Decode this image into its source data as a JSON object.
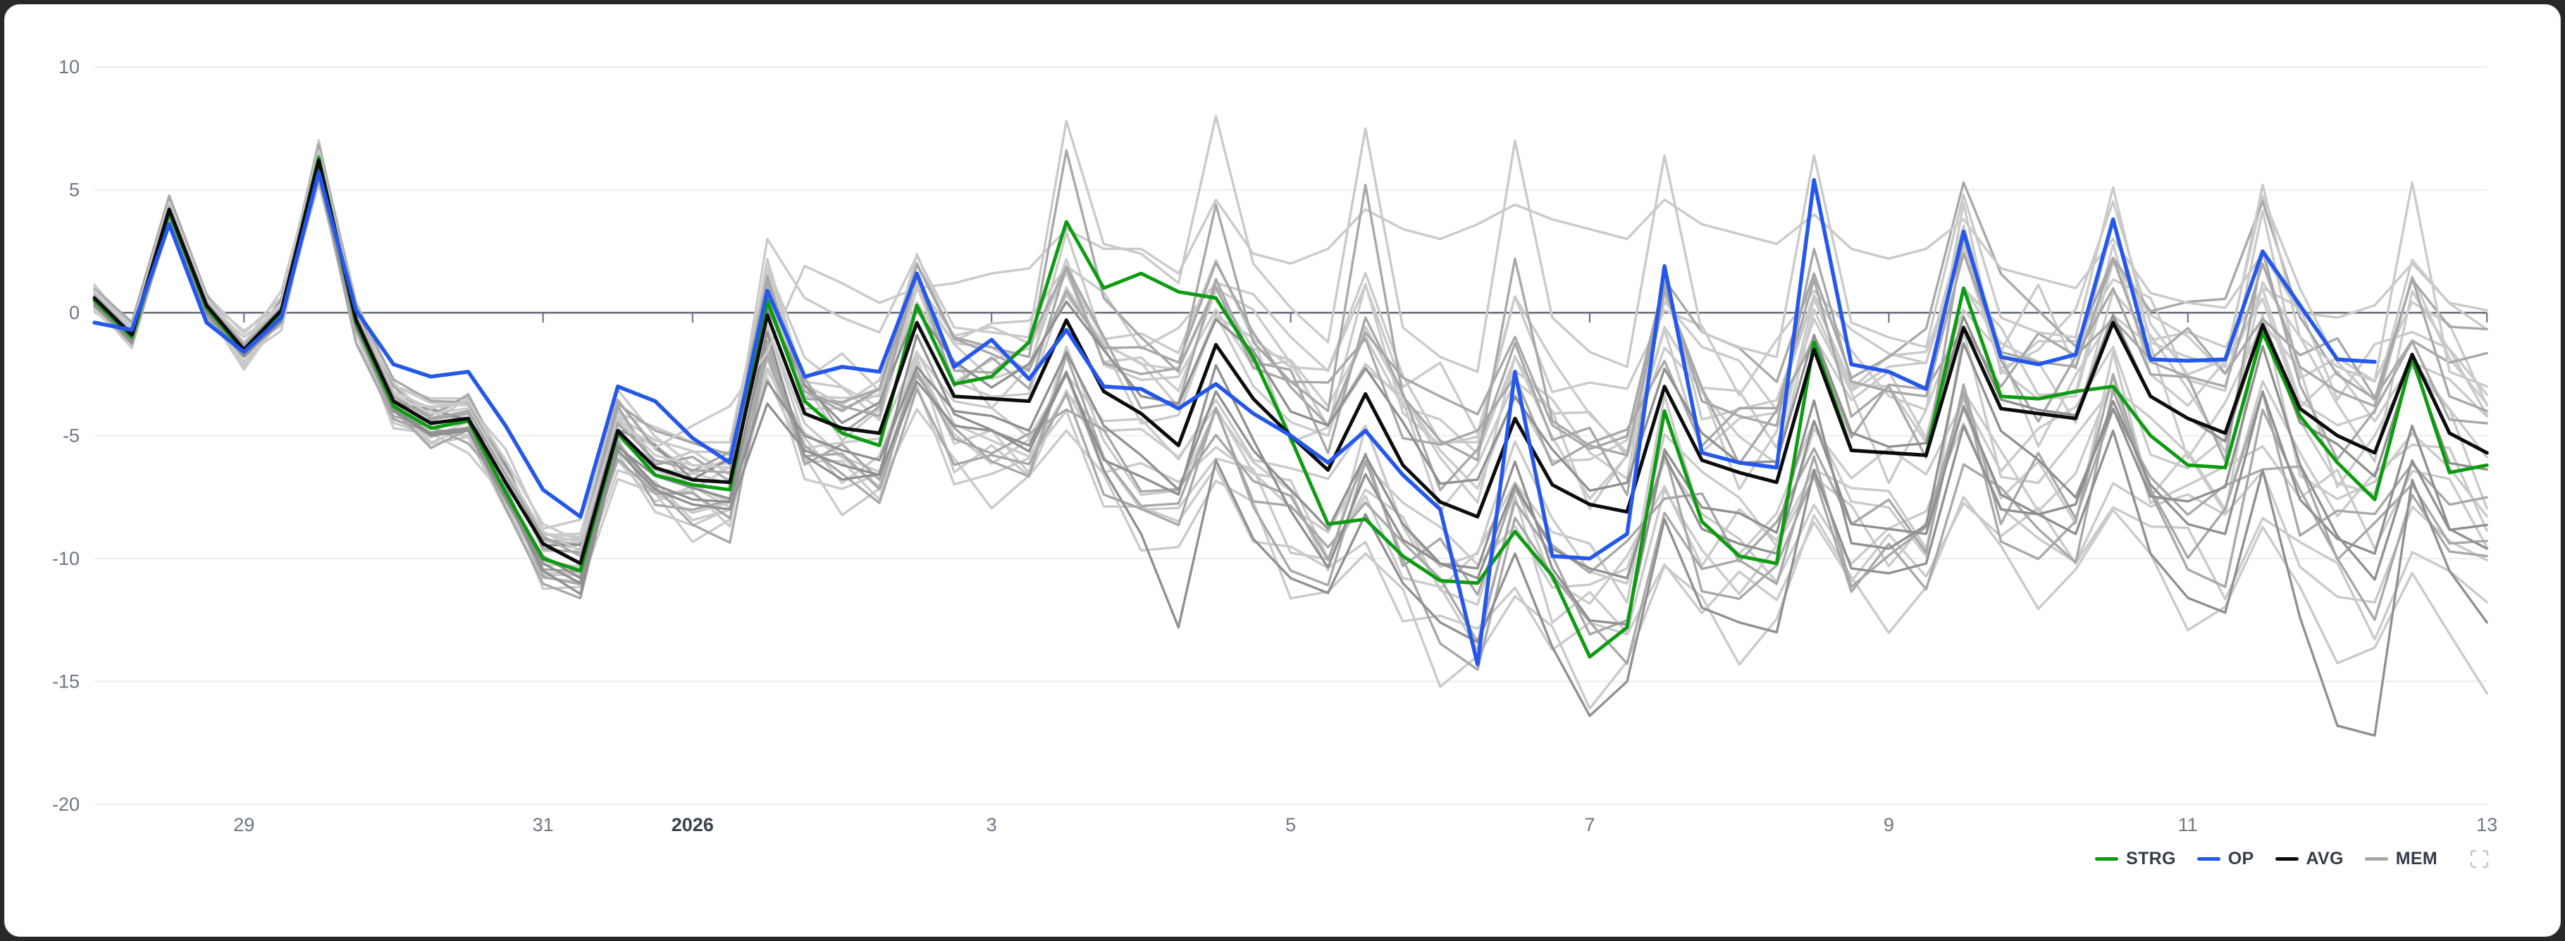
{
  "page": {
    "background": "#282828",
    "card_background": "#ffffff",
    "card_border": "#e4e6ea"
  },
  "legend": {
    "items": [
      {
        "id": "strg",
        "label": "STRG",
        "color": "#0d9c11"
      },
      {
        "id": "op",
        "label": "OP",
        "color": "#2457ec"
      },
      {
        "id": "avg",
        "label": "AVG",
        "color": "#0b0b0b"
      },
      {
        "id": "mem",
        "label": "MEM",
        "color": "#a8a8a8"
      }
    ],
    "fullscreen_icon_color": "#c6c6c6"
  },
  "chart_data": {
    "type": "line",
    "title": "",
    "xlabel": "",
    "ylabel": "",
    "grid": "horizontal",
    "legend_position": "bottom-right",
    "x_axis": {
      "unit": "days",
      "step_days": 0.25,
      "tick_labels": [
        {
          "label": "29",
          "t": 1,
          "bold": false
        },
        {
          "label": "31",
          "t": 3,
          "bold": false
        },
        {
          "label": "2026",
          "t": 4,
          "bold": true
        },
        {
          "label": "3",
          "t": 6,
          "bold": false
        },
        {
          "label": "5",
          "t": 8,
          "bold": false
        },
        {
          "label": "7",
          "t": 10,
          "bold": false
        },
        {
          "label": "9",
          "t": 12,
          "bold": false
        },
        {
          "label": "11",
          "t": 14,
          "bold": false
        },
        {
          "label": "13",
          "t": 16,
          "bold": false
        }
      ]
    },
    "y_axis": {
      "ticks": [
        10,
        5,
        0,
        -5,
        -10,
        -15,
        -20
      ],
      "range": [
        -20,
        10
      ]
    },
    "series": [
      {
        "name": "STRG",
        "color": "#0d9c11",
        "width": 5,
        "start_t": 0,
        "values": [
          0.5,
          -1.0,
          4.1,
          0.2,
          -1.6,
          0.0,
          6.3,
          -0.4,
          -3.8,
          -4.7,
          -4.4,
          -7.3,
          -10.0,
          -10.5,
          -4.9,
          -6.6,
          -7.0,
          -7.2,
          0.5,
          -3.6,
          -4.9,
          -5.4,
          0.3,
          -2.9,
          -2.6,
          -1.2,
          3.7,
          1.0,
          1.6,
          0.85,
          0.6,
          -1.8,
          -5.1,
          -8.6,
          -8.4,
          -9.9,
          -10.9,
          -11.0,
          -8.9,
          -10.7,
          -14.0,
          -12.8,
          -4.0,
          -8.5,
          -9.9,
          -10.2,
          -1.2,
          -5.6,
          -5.7,
          -5.8,
          1.0,
          -3.4,
          -3.5,
          -3.2,
          -3.0,
          -5.0,
          -6.2,
          -6.3,
          -0.8,
          -4.2,
          -6.1,
          -7.6,
          -1.8,
          -6.5,
          -6.2
        ]
      },
      {
        "name": "OP",
        "color": "#2457ec",
        "width": 5.5,
        "start_t": 0,
        "values": [
          -0.4,
          -0.7,
          3.6,
          -0.4,
          -1.6,
          -0.2,
          5.7,
          0.1,
          -2.1,
          -2.6,
          -2.4,
          -4.6,
          -7.2,
          -8.3,
          -3.0,
          -3.6,
          -5.1,
          -6.1,
          0.9,
          -2.6,
          -2.2,
          -2.4,
          1.6,
          -2.2,
          -1.1,
          -2.7,
          -0.7,
          -3.0,
          -3.1,
          -3.9,
          -2.9,
          -4.1,
          -5.0,
          -6.1,
          -4.8,
          -6.6,
          -8.0,
          -14.3,
          -2.4,
          -9.9,
          -10.0,
          -9.0,
          1.9,
          -5.7,
          -6.1,
          -6.3,
          5.4,
          -2.1,
          -2.4,
          -3.1,
          3.3,
          -1.8,
          -2.1,
          -1.7,
          3.8,
          -1.9,
          -1.95,
          -1.9,
          2.5,
          0.3,
          -1.9,
          -2.0
        ]
      },
      {
        "name": "AVG",
        "color": "#0b0b0b",
        "width": 5,
        "start_t": 0,
        "values": [
          0.6,
          -0.9,
          4.2,
          0.3,
          -1.5,
          0.1,
          6.2,
          -0.3,
          -3.6,
          -4.5,
          -4.3,
          -6.9,
          -9.4,
          -10.2,
          -4.8,
          -6.3,
          -6.8,
          -6.9,
          -0.1,
          -4.1,
          -4.7,
          -4.9,
          -0.4,
          -3.4,
          -3.5,
          -3.6,
          -0.3,
          -3.2,
          -4.1,
          -5.4,
          -1.3,
          -3.5,
          -5.0,
          -6.4,
          -3.3,
          -6.2,
          -7.7,
          -8.3,
          -4.3,
          -7.0,
          -7.8,
          -8.1,
          -3.0,
          -6.0,
          -6.5,
          -6.9,
          -1.5,
          -5.6,
          -5.7,
          -5.8,
          -0.6,
          -3.9,
          -4.1,
          -4.3,
          -0.4,
          -3.4,
          -4.3,
          -4.9,
          -0.5,
          -3.9,
          -5.0,
          -5.7,
          -1.7,
          -4.9,
          -5.7
        ]
      }
    ],
    "members": {
      "name": "MEM",
      "line_width": 3.4,
      "shade_colors": {
        "l": "#cacaca",
        "m": "#a8a8a8",
        "d": "#909090"
      },
      "wobble": {
        "base": 0.18,
        "growth": 0.11,
        "max": 1.55
      },
      "amp_ramp": {
        "start_t": 2,
        "span": 5
      },
      "bias_key_step_days": 2,
      "generated": [
        {
          "shade": "l",
          "amp": 1.1,
          "bias": [
            0.3,
            0.4,
            0.6,
            1.0,
            1.5,
            2.0,
            2.5,
            2.0,
            1.5
          ]
        },
        {
          "shade": "l",
          "amp": 0.9,
          "bias": [
            -0.3,
            -0.5,
            -0.8,
            -1.0,
            -1.5,
            -2.0,
            -1.5,
            -1.0,
            -0.5
          ]
        },
        {
          "shade": "l",
          "amp": 1.3,
          "bias": [
            0.2,
            0.3,
            0.5,
            1.5,
            2.5,
            3.0,
            2.0,
            1.0,
            2.0
          ]
        },
        {
          "shade": "l",
          "amp": 0.8,
          "bias": [
            -0.2,
            -0.4,
            -1.0,
            -2.0,
            -3.0,
            -3.5,
            -2.5,
            -3.0,
            -3.5
          ]
        },
        {
          "shade": "l",
          "amp": 1.2,
          "bias": [
            0.4,
            0.5,
            1.0,
            2.0,
            3.0,
            2.5,
            3.0,
            2.5,
            3.0
          ]
        },
        {
          "shade": "l",
          "amp": 1.0,
          "bias": [
            -0.4,
            -0.6,
            -1.2,
            -2.5,
            -4.0,
            -4.5,
            -3.5,
            -2.5,
            -2.0
          ]
        },
        {
          "shade": "l",
          "amp": 1.4,
          "bias": [
            0.1,
            0.2,
            0.4,
            0.8,
            1.2,
            1.8,
            1.0,
            0.5,
            -0.5
          ]
        },
        {
          "shade": "l",
          "amp": 0.7,
          "bias": [
            -0.1,
            -0.3,
            -0.6,
            -1.5,
            -2.2,
            -3.0,
            -4.0,
            -5.0,
            -6.0
          ]
        },
        {
          "shade": "l",
          "amp": 1.1,
          "bias": [
            0.25,
            0.5,
            1.2,
            2.2,
            3.5,
            4.0,
            3.0,
            3.5,
            4.0
          ]
        },
        {
          "shade": "l",
          "amp": 0.9,
          "bias": [
            -0.25,
            -0.5,
            -1.5,
            -3.0,
            -5.0,
            -6.0,
            -5.0,
            -6.0,
            -7.0
          ]
        },
        {
          "shade": "l",
          "amp": 1.0,
          "bias": [
            0.15,
            0.3,
            0.8,
            1.5,
            2.0,
            1.5,
            2.0,
            1.5,
            1.0
          ]
        },
        {
          "shade": "l",
          "amp": 1.2,
          "bias": [
            -0.15,
            -0.35,
            -0.9,
            -1.8,
            -2.8,
            -2.0,
            -2.5,
            -1.5,
            -2.5
          ]
        },
        {
          "shade": "l",
          "amp": 0.85,
          "bias": [
            0.35,
            0.6,
            1.5,
            2.8,
            4.0,
            4.5,
            4.0,
            3.0,
            2.5
          ]
        },
        {
          "shade": "l",
          "amp": 1.15,
          "bias": [
            -0.35,
            -0.7,
            -1.8,
            -3.5,
            -5.5,
            -7.0,
            -6.0,
            -7.5,
            -9.0
          ]
        },
        {
          "shade": "m",
          "amp": 1.0,
          "bias": [
            0.3,
            0.5,
            1.0,
            1.8,
            2.8,
            3.5,
            4.5,
            4.0,
            3.5
          ]
        },
        {
          "shade": "m",
          "amp": 1.25,
          "bias": [
            -0.3,
            -0.6,
            -1.4,
            -2.8,
            -4.2,
            -5.0,
            -4.0,
            -4.5,
            -5.5
          ]
        },
        {
          "shade": "m",
          "amp": 0.9,
          "bias": [
            0.2,
            0.4,
            0.9,
            1.6,
            2.4,
            2.0,
            1.5,
            2.0,
            2.5
          ]
        },
        {
          "shade": "m",
          "amp": 1.1,
          "bias": [
            -0.2,
            -0.5,
            -1.1,
            -2.2,
            -3.4,
            -4.0,
            -5.0,
            -4.0,
            -3.0
          ]
        },
        {
          "shade": "m",
          "amp": 1.35,
          "bias": [
            0.1,
            0.25,
            0.6,
            1.2,
            2.0,
            2.5,
            2.0,
            1.0,
            0.5
          ]
        },
        {
          "shade": "m",
          "amp": 0.8,
          "bias": [
            -0.1,
            -0.4,
            -1.0,
            -2.0,
            -3.2,
            -2.5,
            -3.0,
            -3.5,
            -4.5
          ]
        },
        {
          "shade": "d",
          "amp": 1.05,
          "bias": [
            0.05,
            0.2,
            0.5,
            1.0,
            1.5,
            1.0,
            0.5,
            0.0,
            -1.0
          ]
        },
        {
          "shade": "d",
          "amp": 1.2,
          "bias": [
            -0.05,
            -0.3,
            -0.8,
            -1.6,
            -2.6,
            -3.2,
            -2.2,
            -2.8,
            -3.8
          ]
        }
      ],
      "explicit": [
        {
          "shade": "l",
          "values": [
            0.8,
            -0.7,
            4.4,
            0.5,
            -1.3,
            0.3,
            6.5,
            -0.1,
            -3.2,
            -3.9,
            -3.6,
            -6.0,
            -8.6,
            -9.3,
            -4.4,
            -5.5,
            -4.6,
            -3.8,
            -1.6,
            1.9,
            1.2,
            0.4,
            1.0,
            1.2,
            1.6,
            1.8,
            3.4,
            2.6,
            2.6,
            1.6,
            4.6,
            2.4,
            2.0,
            2.6,
            4.2,
            3.4,
            3.0,
            3.6,
            4.4,
            3.8,
            3.4,
            3.0,
            4.6,
            3.6,
            3.2,
            2.8,
            4.0,
            2.6,
            2.2,
            2.6,
            3.8,
            1.8,
            1.4,
            1.0,
            3.0,
            0.8,
            0.4,
            0.2,
            2.4,
            0.0,
            -0.2,
            0.3,
            2.0,
            0.4,
            0.1
          ]
        },
        {
          "shade": "l",
          "values": [
            0.9,
            -0.6,
            4.5,
            0.6,
            -1.2,
            0.4,
            6.6,
            0.0,
            -3.3,
            -4.1,
            -3.9,
            -6.4,
            -8.9,
            -9.7,
            -4.3,
            -5.8,
            -6.2,
            -6.3,
            3.0,
            0.6,
            -0.2,
            -0.8,
            2.3,
            -0.6,
            -0.8,
            -1.0,
            7.8,
            2.8,
            2.4,
            1.2,
            8.0,
            2.0,
            0.2,
            -1.2,
            7.5,
            -0.6,
            -1.8,
            -2.4,
            7.0,
            -0.2,
            -1.6,
            -2.2,
            6.4,
            -0.8,
            -1.4,
            -1.8,
            6.4,
            -0.4,
            -1.0,
            -1.4,
            4.8,
            -0.2,
            -0.8,
            -1.0,
            5.1,
            -1.2,
            -1.8,
            -2.2,
            5.2,
            -1.0,
            -2.2,
            -2.8,
            5.3,
            -2.4,
            -3.0
          ]
        },
        {
          "shade": "m",
          "values": [
            0.7,
            -0.8,
            4.3,
            0.4,
            -1.3,
            0.2,
            6.4,
            -0.1,
            -3.4,
            -4.3,
            -4.0,
            -6.6,
            -9.1,
            -9.9,
            -4.5,
            -6.0,
            -6.4,
            -6.5,
            1.5,
            -3.2,
            -3.8,
            -4.2,
            2.0,
            -1.0,
            -1.4,
            -1.8,
            6.6,
            0.6,
            -1.0,
            -2.4,
            4.4,
            -1.2,
            -2.8,
            -4.0,
            5.2,
            -3.4,
            -5.2,
            -6.0,
            2.2,
            -4.4,
            -5.4,
            -5.8,
            1.2,
            -3.6,
            -4.2,
            -4.6,
            2.6,
            -2.8,
            -3.2,
            -3.4,
            2.4,
            -1.6,
            -2.0,
            -2.2,
            2.2,
            -2.0,
            -2.6,
            -3.0,
            2.0,
            -2.2,
            -3.2,
            -3.8,
            1.4,
            -3.4,
            -4.0
          ]
        },
        {
          "shade": "d",
          "values": [
            0.3,
            -1.2,
            3.9,
            0.0,
            -1.8,
            -0.2,
            5.9,
            -0.6,
            -4.0,
            -5.0,
            -4.8,
            -7.6,
            -10.2,
            -11.0,
            -5.6,
            -7.2,
            -7.8,
            -8.0,
            -3.7,
            -5.6,
            -6.2,
            -6.6,
            -2.8,
            -4.6,
            -4.8,
            -5.4,
            -2.4,
            -6.4,
            -9.0,
            -12.8,
            -6.0,
            -9.2,
            -10.8,
            -11.4,
            -8.2,
            -11.0,
            -12.6,
            -13.4,
            -9.8,
            -13.6,
            -16.4,
            -15.0,
            -8.4,
            -12.0,
            -12.6,
            -13.0,
            -6.4,
            -10.4,
            -10.6,
            -10.2,
            -4.6,
            -8.0,
            -8.2,
            -7.8,
            -3.6,
            -7.0,
            -8.6,
            -9.0,
            -3.2,
            -7.6,
            -9.2,
            -9.8,
            -4.6,
            -8.8,
            -9.6
          ]
        },
        {
          "shade": "d",
          "values": [
            0.4,
            -1.1,
            4.0,
            0.1,
            -1.7,
            -0.1,
            6.0,
            -0.5,
            -3.9,
            -4.9,
            -4.7,
            -7.4,
            -9.9,
            -10.8,
            -5.4,
            -7.0,
            -7.6,
            -7.7,
            -2.8,
            -5.0,
            -5.6,
            -6.0,
            -2.2,
            -4.0,
            -4.2,
            -4.8,
            -1.6,
            -4.6,
            -5.8,
            -7.2,
            -3.2,
            -5.6,
            -7.2,
            -8.8,
            -5.8,
            -8.6,
            -10.2,
            -10.8,
            -7.0,
            -9.6,
            -10.4,
            -10.8,
            -5.8,
            -8.8,
            -9.4,
            -9.8,
            -4.4,
            -8.6,
            -8.8,
            -9.0,
            -3.8,
            -7.4,
            -8.2,
            -9.0,
            -4.8,
            -9.8,
            -11.6,
            -12.2,
            -6.4,
            -12.4,
            -16.8,
            -17.2,
            -6.8,
            -10.5,
            -12.6
          ]
        }
      ]
    },
    "style": {
      "grid_color": "#ededed",
      "zero_line_color": "#5d6570",
      "tick_mark_color": "#646c78",
      "tick_label_color": "#6e7681",
      "year_label_color": "#3a424e"
    }
  }
}
